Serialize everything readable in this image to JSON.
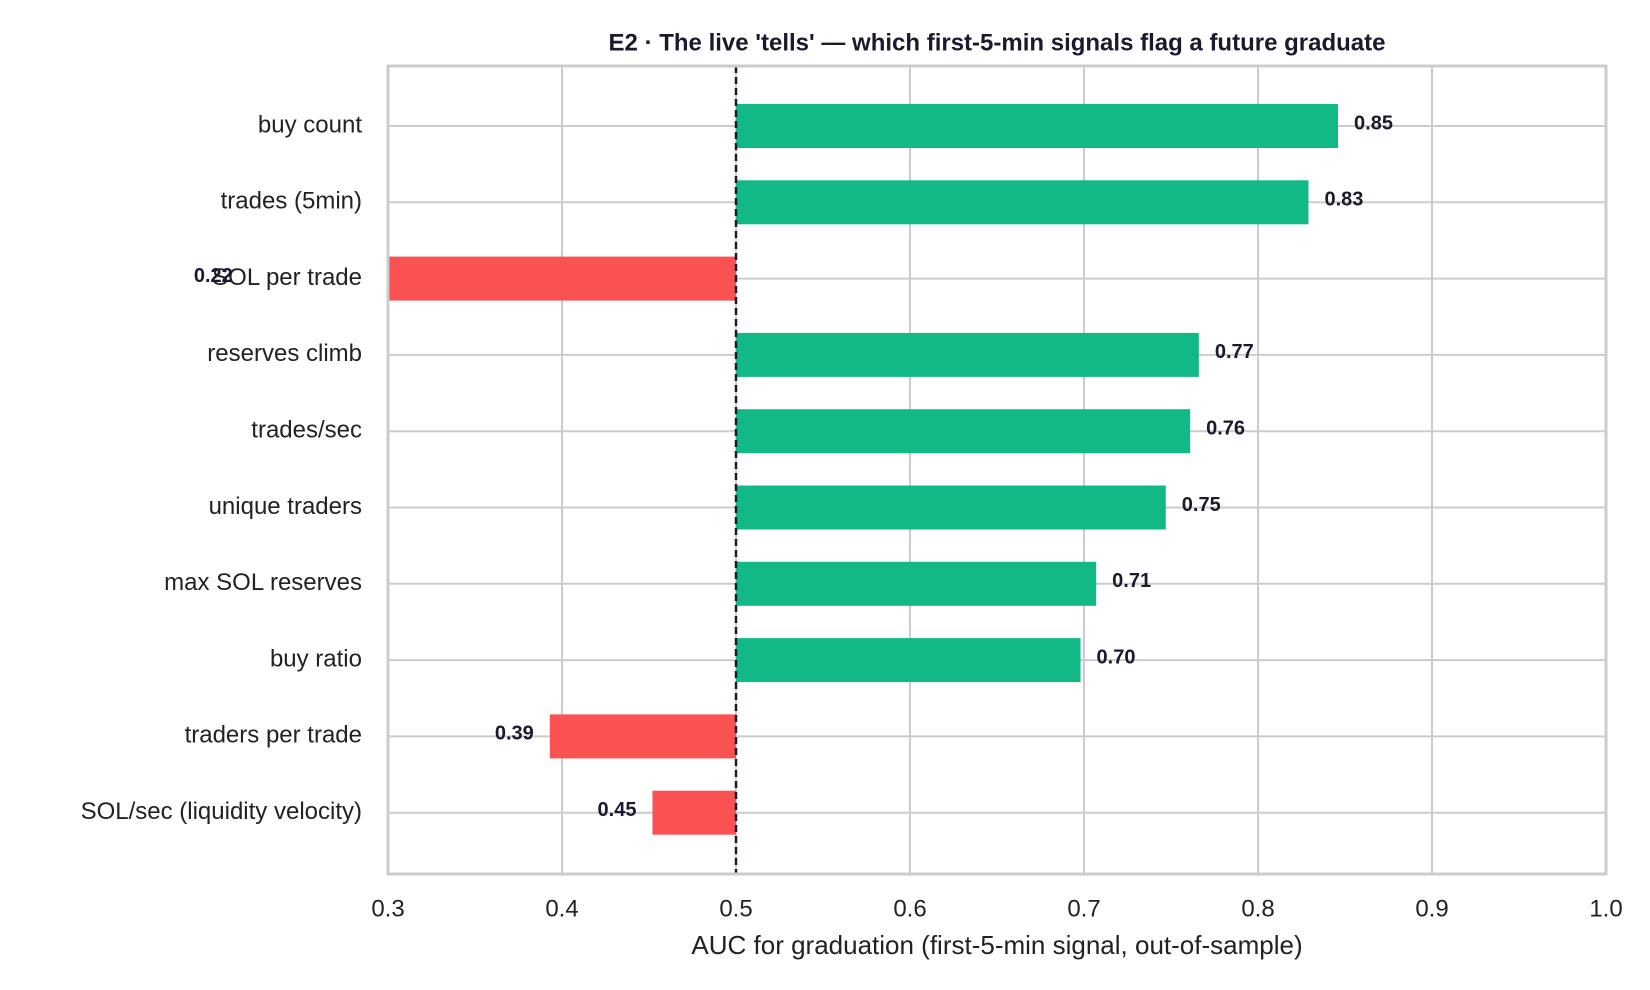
{
  "chart_data": {
    "type": "bar",
    "orientation": "horizontal",
    "title": "E2 · The live 'tells' — which first-5-min signals flag a future graduate",
    "x_label": "AUC for graduation (first-5-min signal, out-of-sample)",
    "categories": [
      "buy count",
      "trades (5min)",
      "SOL per trade",
      "reserves climb",
      "trades/sec",
      "unique traders",
      "max SOL reserves",
      "buy ratio",
      "traders per trade",
      "SOL/sec (liquidity velocity)"
    ],
    "values": [
      0.846,
      0.829,
      0.22,
      0.766,
      0.761,
      0.747,
      0.707,
      0.698,
      0.393,
      0.452
    ],
    "value_labels": [
      "0.85",
      "0.83",
      "0.22",
      "0.77",
      "0.76",
      "0.75",
      "0.71",
      "0.70",
      "0.39",
      "0.45"
    ],
    "baseline": 0.5,
    "colors": {
      "above": "#12b886",
      "below": "#fa5252"
    },
    "xlim": [
      0.3,
      1.0
    ],
    "xticks": [
      0.3,
      0.4,
      0.5,
      0.6,
      0.7,
      0.8,
      0.9,
      {
        "value": 1.0,
        "label": "1.0"
      }
    ],
    "grid": true
  }
}
